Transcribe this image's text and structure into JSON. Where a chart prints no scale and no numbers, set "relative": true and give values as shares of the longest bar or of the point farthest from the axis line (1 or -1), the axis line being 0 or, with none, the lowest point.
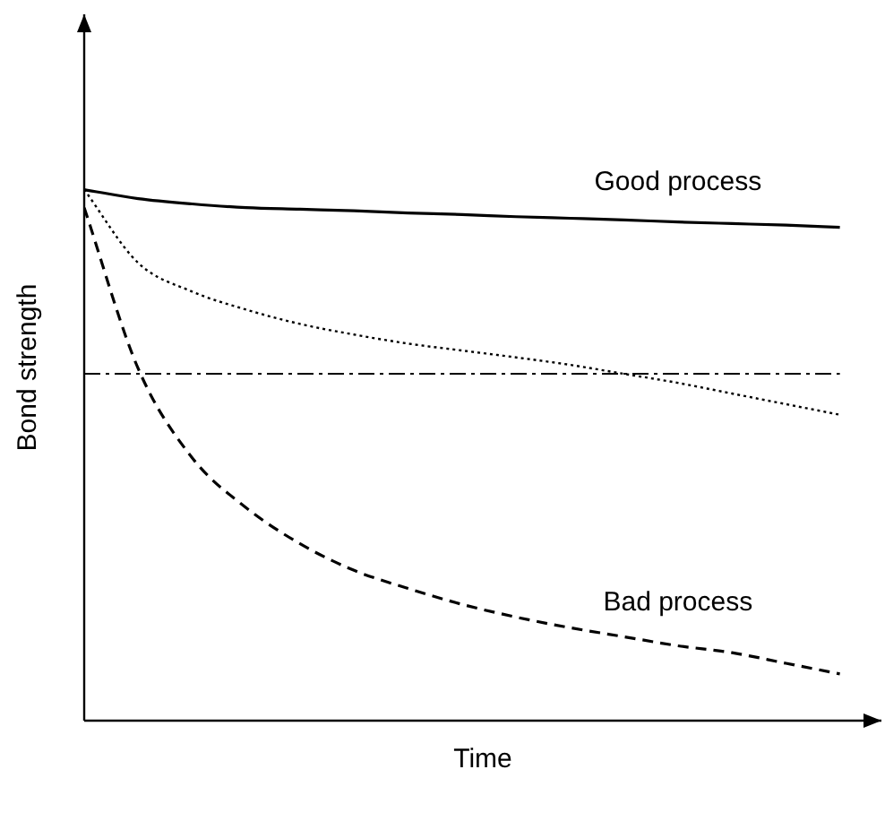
{
  "chart_data": {
    "type": "line",
    "relative": true,
    "xlabel": "Time",
    "ylabel": "Bond strength",
    "categories": [
      null,
      null,
      null,
      null,
      null,
      null,
      null,
      null,
      null,
      null,
      null,
      null,
      null,
      null,
      null
    ],
    "series": [
      {
        "name": "Good process",
        "color": "#000000",
        "line_style": "solid",
        "values": [
          1,
          0.983,
          0.973,
          0.966,
          0.963,
          0.96,
          0.956,
          0.953,
          0.949,
          0.946,
          0.943,
          0.939,
          0.936,
          0.933,
          0.929
        ]
      },
      {
        "color": "#000000",
        "line_style": "dotted",
        "values": [
          1,
          0.862,
          0.808,
          0.774,
          0.747,
          0.727,
          0.71,
          0.697,
          0.684,
          0.67,
          0.653,
          0.636,
          0.616,
          0.596,
          0.576
        ]
      },
      {
        "name": "Bad process",
        "color": "#000000",
        "line_style": "dashed",
        "values": [
          0.966,
          0.663,
          0.495,
          0.401,
          0.333,
          0.283,
          0.249,
          0.219,
          0.195,
          0.175,
          0.158,
          0.141,
          0.128,
          0.108,
          0.088
        ]
      }
    ],
    "ref_lines": [
      {
        "axis": "y",
        "value": 0.653,
        "color": "#000000",
        "line_style": "dashed"
      }
    ],
    "legend": false,
    "marker": "none"
  }
}
